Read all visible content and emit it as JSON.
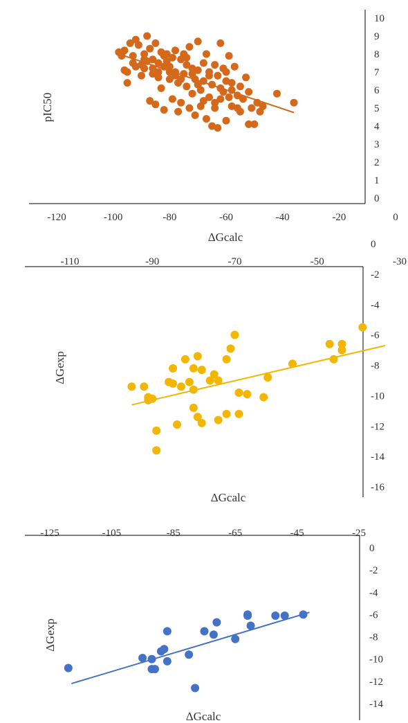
{
  "chart_data": [
    {
      "type": "scatter",
      "xlabel": "ΔGcalc",
      "ylabel": "pIC50",
      "xlim": [
        -130,
        0
      ],
      "ylim": [
        0,
        10
      ],
      "x_ticks": [
        "-120",
        "-100",
        "-80",
        "-60",
        "-40",
        "-20",
        "0"
      ],
      "y_ticks": [
        "0",
        "1",
        "2",
        "3",
        "4",
        "5",
        "6",
        "7",
        "8",
        "9",
        "10"
      ],
      "x_tick_position": "bottom",
      "y_tick_position": "right",
      "grid": false,
      "legend": "none",
      "trendline": {
        "x": [
          -97,
          -36
        ],
        "y": [
          7.95,
          4.75
        ]
      },
      "series": [
        {
          "color": "#d4691c",
          "points": [
            [
              -98,
              8.1
            ],
            [
              -97,
              7.9
            ],
            [
              -96,
              8.2
            ],
            [
              -95,
              7.0
            ],
            [
              -95,
              6.4
            ],
            [
              -94,
              8.6
            ],
            [
              -93,
              7.9
            ],
            [
              -92,
              8.8
            ],
            [
              -92,
              7.3
            ],
            [
              -91,
              8.5
            ],
            [
              -90,
              7.4
            ],
            [
              -90,
              6.8
            ],
            [
              -89,
              8.0
            ],
            [
              -89,
              7.2
            ],
            [
              -88,
              9.0
            ],
            [
              -88,
              7.6
            ],
            [
              -87,
              8.3
            ],
            [
              -87,
              5.4
            ],
            [
              -86,
              7.7
            ],
            [
              -86,
              6.9
            ],
            [
              -85,
              8.6
            ],
            [
              -85,
              5.2
            ],
            [
              -84,
              7.5
            ],
            [
              -84,
              7.0
            ],
            [
              -83,
              8.1
            ],
            [
              -83,
              6.1
            ],
            [
              -82,
              7.3
            ],
            [
              -82,
              4.9
            ],
            [
              -81,
              8.0
            ],
            [
              -81,
              7.6
            ],
            [
              -80,
              7.3
            ],
            [
              -80,
              6.6
            ],
            [
              -79,
              7.8
            ],
            [
              -79,
              5.5
            ],
            [
              -78,
              8.2
            ],
            [
              -78,
              7.0
            ],
            [
              -77,
              6.4
            ],
            [
              -77,
              4.8
            ],
            [
              -76,
              7.7
            ],
            [
              -76,
              5.3
            ],
            [
              -75,
              8.0
            ],
            [
              -75,
              6.9
            ],
            [
              -74,
              7.4
            ],
            [
              -74,
              6.2
            ],
            [
              -73,
              5.0
            ],
            [
              -73,
              8.4
            ],
            [
              -72,
              7.2
            ],
            [
              -72,
              5.8
            ],
            [
              -71,
              6.6
            ],
            [
              -71,
              4.6
            ],
            [
              -70,
              8.7
            ],
            [
              -70,
              7.1
            ],
            [
              -69,
              6.0
            ],
            [
              -69,
              5.1
            ],
            [
              -68,
              7.5
            ],
            [
              -68,
              6.5
            ],
            [
              -67,
              8.0
            ],
            [
              -67,
              4.4
            ],
            [
              -66,
              7.0
            ],
            [
              -66,
              5.6
            ],
            [
              -65,
              6.3
            ],
            [
              -65,
              4.0
            ],
            [
              -64,
              7.4
            ],
            [
              -64,
              5.3
            ],
            [
              -63,
              6.8
            ],
            [
              -63,
              3.9
            ],
            [
              -62,
              6.1
            ],
            [
              -62,
              8.6
            ],
            [
              -61,
              7.2
            ],
            [
              -61,
              5.9
            ],
            [
              -60,
              4.3
            ],
            [
              -60,
              6.5
            ],
            [
              -59,
              7.9
            ],
            [
              -59,
              5.6
            ],
            [
              -58,
              6.0
            ],
            [
              -58,
              5.1
            ],
            [
              -57,
              7.3
            ],
            [
              -56,
              5.7
            ],
            [
              -55,
              6.2
            ],
            [
              -55,
              4.8
            ],
            [
              -54,
              5.5
            ],
            [
              -53,
              6.7
            ],
            [
              -52,
              4.1
            ],
            [
              -52,
              5.9
            ],
            [
              -51,
              5.0
            ],
            [
              -50,
              4.1
            ],
            [
              -49,
              5.3
            ],
            [
              -48,
              4.8
            ],
            [
              -47,
              5.1
            ],
            [
              -42,
              5.8
            ],
            [
              -36,
              5.3
            ],
            [
              -96,
              7.1
            ],
            [
              -93,
              7.5
            ],
            [
              -89,
              7.7
            ],
            [
              -86,
              7.2
            ],
            [
              -84,
              6.7
            ],
            [
              -82,
              7.9
            ],
            [
              -80,
              7.0
            ],
            [
              -78,
              6.8
            ],
            [
              -76,
              6.6
            ],
            [
              -74,
              7.8
            ],
            [
              -72,
              6.9
            ],
            [
              -70,
              6.3
            ],
            [
              -68,
              5.4
            ],
            [
              -66,
              6.8
            ],
            [
              -64,
              5.0
            ],
            [
              -62,
              5.5
            ],
            [
              -60,
              7.0
            ],
            [
              -58,
              6.4
            ],
            [
              -56,
              5.0
            ]
          ]
        }
      ]
    },
    {
      "type": "scatter",
      "xlabel": "ΔGcalc",
      "ylabel": "ΔGexp",
      "xlim": [
        -110,
        -30
      ],
      "ylim": [
        -17,
        0
      ],
      "x_ticks": [
        "-110",
        "-90",
        "-70",
        "-50",
        "-30"
      ],
      "y_ticks": [
        "0",
        "-2",
        "-4",
        "-6",
        "-8",
        "-10",
        "-12",
        "-14",
        "-16"
      ],
      "x_tick_position": "top",
      "y_tick_position": "right",
      "grid": false,
      "legend": "none",
      "trendline": {
        "x": [
          -95,
          -33.5
        ],
        "y": [
          -10.6,
          -6.7
        ]
      },
      "series": [
        {
          "color": "#f2b705",
          "points": [
            [
              -95,
              -9.4
            ],
            [
              -92,
              -9.4
            ],
            [
              -91,
              -10.1
            ],
            [
              -91,
              -10.3
            ],
            [
              -89,
              -12.3
            ],
            [
              -89,
              -13.6
            ],
            [
              -86,
              -9.1
            ],
            [
              -85,
              -8.2
            ],
            [
              -85,
              -9.2
            ],
            [
              -84,
              -11.9
            ],
            [
              -83,
              -9.4
            ],
            [
              -82,
              -7.6
            ],
            [
              -81,
              -9.1
            ],
            [
              -80,
              -8.2
            ],
            [
              -80,
              -9.6
            ],
            [
              -80,
              -10.8
            ],
            [
              -79,
              -11.4
            ],
            [
              -79,
              -7.4
            ],
            [
              -78,
              -11.8
            ],
            [
              -78,
              -8.3
            ],
            [
              -76,
              -9.0
            ],
            [
              -75,
              -8.6
            ],
            [
              -74,
              -9.0
            ],
            [
              -72,
              -7.6
            ],
            [
              -71,
              -6.9
            ],
            [
              -70,
              -6.0
            ],
            [
              -72,
              -11.2
            ],
            [
              -69,
              -11.2
            ],
            [
              -69,
              -9.8
            ],
            [
              -67,
              -9.9
            ],
            [
              -63,
              -10.1
            ],
            [
              -62,
              -8.8
            ],
            [
              -56,
              -7.9
            ],
            [
              -47,
              -6.6
            ],
            [
              -46,
              -7.6
            ],
            [
              -44,
              -6.6
            ],
            [
              -44,
              -7.0
            ],
            [
              -39,
              -5.5
            ],
            [
              -90,
              -10.2
            ],
            [
              -74,
              -11.6
            ]
          ]
        }
      ]
    },
    {
      "type": "scatter",
      "xlabel": "ΔGcalc",
      "ylabel": "ΔGexp",
      "xlim": [
        -125,
        -25
      ],
      "ylim": [
        -15,
        0
      ],
      "x_ticks": [
        "-125",
        "-105",
        "-85",
        "-65",
        "-45",
        "-25"
      ],
      "y_ticks": [
        "0",
        "-2",
        "-4",
        "-6",
        "-8",
        "-10",
        "-12",
        "-14"
      ],
      "x_tick_position": "top",
      "y_tick_position": "right",
      "grid": false,
      "legend": "none",
      "trendline": {
        "x": [
          -118,
          -41
        ],
        "y": [
          -12.2,
          -5.8
        ]
      },
      "series": [
        {
          "color": "#4472c4",
          "points": [
            [
              -119,
              -10.8
            ],
            [
              -95,
              -9.9
            ],
            [
              -92,
              -10.0
            ],
            [
              -92,
              -10.9
            ],
            [
              -91,
              -10.9
            ],
            [
              -89,
              -9.3
            ],
            [
              -88,
              -9.1
            ],
            [
              -87,
              -10.2
            ],
            [
              -87,
              -7.5
            ],
            [
              -80,
              -9.6
            ],
            [
              -78,
              -12.6
            ],
            [
              -75,
              -7.5
            ],
            [
              -72,
              -7.8
            ],
            [
              -71,
              -6.7
            ],
            [
              -65,
              -8.2
            ],
            [
              -61,
              -6.0
            ],
            [
              -61,
              -6.1
            ],
            [
              -60,
              -7.0
            ],
            [
              -52,
              -6.1
            ],
            [
              -49,
              -6.1
            ],
            [
              -43,
              -6.0
            ]
          ]
        }
      ]
    }
  ]
}
